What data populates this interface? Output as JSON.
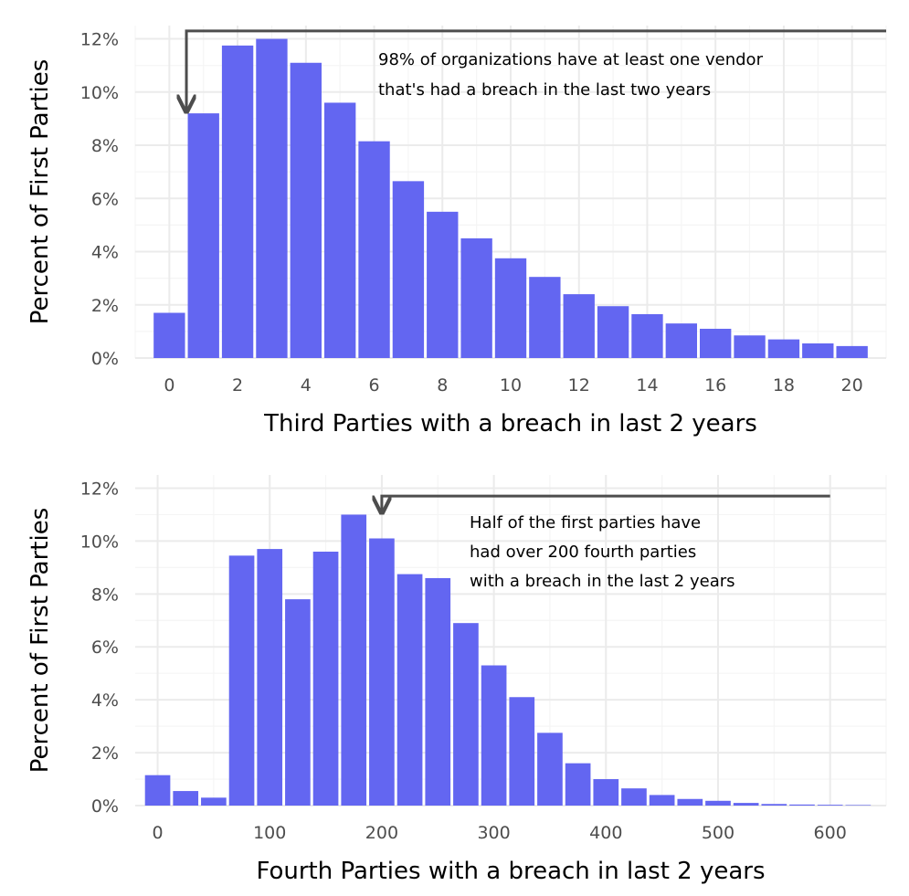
{
  "colors": {
    "bar": "#6366f1",
    "grid_major": "#ebebeb",
    "grid_minor": "#f5f5f5",
    "tick_text": "#4d4d4d",
    "annotation_line": "#4d4d4d"
  },
  "chart_data": [
    {
      "type": "bar",
      "xlabel": "Third Parties with a breach in last 2 years",
      "ylabel": "Percent of First Parties",
      "x": [
        0,
        1,
        2,
        3,
        4,
        5,
        6,
        7,
        8,
        9,
        10,
        11,
        12,
        13,
        14,
        15,
        16,
        17,
        18,
        19,
        20
      ],
      "values": [
        1.7,
        9.2,
        11.75,
        12.0,
        11.1,
        9.6,
        8.15,
        6.65,
        5.5,
        4.5,
        3.75,
        3.05,
        2.4,
        1.95,
        1.65,
        1.3,
        1.1,
        0.85,
        0.7,
        0.55,
        0.45
      ],
      "xlim": [
        -1,
        21
      ],
      "ylim": [
        0,
        12.5
      ],
      "xticks": [
        0,
        2,
        4,
        6,
        8,
        10,
        12,
        14,
        16,
        18,
        20
      ],
      "xtick_labels": [
        "0",
        "2",
        "4",
        "6",
        "8",
        "10",
        "12",
        "14",
        "16",
        "18",
        "20"
      ],
      "yticks": [
        0,
        2,
        4,
        6,
        8,
        10,
        12
      ],
      "ytick_labels": [
        "0%",
        "2%",
        "4%",
        "6%",
        "8%",
        "10%",
        "12%"
      ],
      "grid": true,
      "annotation": {
        "lines": [
          "98% of organizations have at least one vendor",
          "that's had a breach in the last two years"
        ],
        "arrow_from_x": 21,
        "arrow_corner_x": 0.5,
        "arrow_y": 12.3,
        "arrow_to_y": 9.2
      }
    },
    {
      "type": "bar",
      "xlabel": "Fourth Parties with a breach in last 2 years",
      "ylabel": "Percent of First Parties",
      "x": [
        0,
        25,
        50,
        75,
        100,
        125,
        150,
        175,
        200,
        225,
        250,
        275,
        300,
        325,
        350,
        375,
        400,
        425,
        450,
        475,
        500,
        525,
        550,
        575,
        600,
        625
      ],
      "values": [
        1.15,
        0.55,
        0.3,
        9.45,
        9.7,
        7.8,
        9.6,
        11.0,
        10.1,
        8.75,
        8.6,
        6.9,
        5.3,
        4.1,
        2.75,
        1.6,
        1.0,
        0.65,
        0.4,
        0.25,
        0.18,
        0.1,
        0.06,
        0.04,
        0.03,
        0.02
      ],
      "xlim": [
        -20,
        650
      ],
      "ylim": [
        0,
        12.5
      ],
      "xticks": [
        0,
        100,
        200,
        300,
        400,
        500,
        600
      ],
      "xtick_labels": [
        "0",
        "100",
        "200",
        "300",
        "400",
        "500",
        "600"
      ],
      "yticks": [
        0,
        2,
        4,
        6,
        8,
        10,
        12
      ],
      "ytick_labels": [
        "0%",
        "2%",
        "4%",
        "6%",
        "8%",
        "10%",
        "12%"
      ],
      "grid": true,
      "annotation": {
        "lines": [
          "Half of the first parties have",
          "had over 200 fourth parties",
          "with a breach in the last 2 years"
        ],
        "arrow_from_x": 600,
        "arrow_corner_x": 200,
        "arrow_y": 11.7,
        "arrow_to_y": 11.0
      }
    }
  ]
}
